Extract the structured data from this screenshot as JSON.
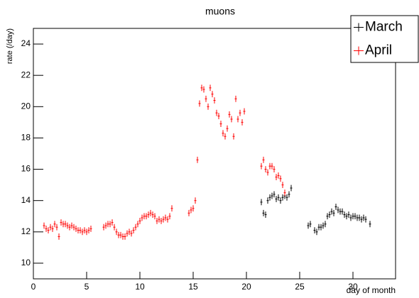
{
  "chart_data": {
    "type": "scatter",
    "title": "muons",
    "x_label": "day of month",
    "y_label": "rate (/day)",
    "xlim": [
      0,
      34
    ],
    "ylim": [
      9,
      25
    ],
    "xticks": [
      0,
      5,
      10,
      15,
      20,
      25,
      30
    ],
    "yticks": [
      10,
      12,
      14,
      16,
      18,
      20,
      22,
      24
    ],
    "legend": "top-right",
    "series": [
      {
        "name": "March",
        "color": "#000000",
        "xerr": 0.1,
        "yerr": 0.2,
        "x": [
          21.4,
          21.6,
          21.8,
          22.0,
          22.2,
          22.4,
          22.6,
          22.8,
          23.0,
          23.2,
          23.4,
          23.6,
          23.8,
          24.0,
          24.2,
          25.8,
          26.0,
          26.4,
          26.6,
          26.8,
          27.0,
          27.2,
          27.4,
          27.6,
          27.8,
          28.0,
          28.2,
          28.4,
          28.6,
          28.8,
          29.0,
          29.2,
          29.4,
          29.6,
          29.8,
          30.0,
          30.2,
          30.4,
          30.6,
          30.8,
          31.0,
          31.2,
          31.6
        ],
        "values": [
          13.9,
          13.2,
          13.1,
          14.0,
          14.2,
          14.3,
          14.4,
          14.1,
          14.2,
          14.0,
          14.2,
          14.3,
          14.2,
          14.4,
          14.8,
          12.4,
          12.5,
          12.1,
          12.0,
          12.3,
          12.3,
          12.4,
          12.5,
          13.0,
          13.1,
          13.3,
          13.2,
          13.6,
          13.4,
          13.3,
          13.3,
          13.1,
          13.0,
          13.1,
          12.9,
          13.0,
          13.0,
          12.9,
          12.9,
          12.8,
          12.9,
          12.8,
          12.5
        ]
      },
      {
        "name": "April",
        "color": "#ff0000",
        "xerr": 0.1,
        "yerr": 0.2,
        "x": [
          1.0,
          1.2,
          1.4,
          1.6,
          1.8,
          2.0,
          2.2,
          2.4,
          2.6,
          2.8,
          3.0,
          3.2,
          3.4,
          3.6,
          3.8,
          4.0,
          4.2,
          4.4,
          4.6,
          4.8,
          5.0,
          5.2,
          5.4,
          6.6,
          6.8,
          7.0,
          7.2,
          7.4,
          7.6,
          7.8,
          8.0,
          8.2,
          8.4,
          8.6,
          8.8,
          9.0,
          9.2,
          9.4,
          9.6,
          9.8,
          10.0,
          10.2,
          10.4,
          10.6,
          10.8,
          11.0,
          11.2,
          11.4,
          11.6,
          11.8,
          12.0,
          12.2,
          12.4,
          12.6,
          12.8,
          13.0,
          14.6,
          14.8,
          15.0,
          15.2,
          15.4,
          15.6,
          15.8,
          16.0,
          16.2,
          16.4,
          16.6,
          16.8,
          17.0,
          17.2,
          17.4,
          17.6,
          17.8,
          18.0,
          18.2,
          18.4,
          18.6,
          18.8,
          19.0,
          19.2,
          19.4,
          19.6,
          19.8,
          21.4,
          21.6,
          21.8,
          22.0,
          22.2,
          22.4,
          22.6,
          22.8,
          23.0,
          23.2,
          23.4,
          23.6
        ],
        "values": [
          12.4,
          12.2,
          12.1,
          12.3,
          12.2,
          12.5,
          12.3,
          11.7,
          12.6,
          12.5,
          12.5,
          12.4,
          12.3,
          12.4,
          12.3,
          12.2,
          12.1,
          12.1,
          12.0,
          12.1,
          12.0,
          12.1,
          12.2,
          12.3,
          12.4,
          12.5,
          12.5,
          12.6,
          12.3,
          12.0,
          11.8,
          11.8,
          11.7,
          11.7,
          11.9,
          12.0,
          11.9,
          12.1,
          12.3,
          12.5,
          12.7,
          12.9,
          13.0,
          13.0,
          13.1,
          13.2,
          13.1,
          13.0,
          12.7,
          12.8,
          12.7,
          12.8,
          12.9,
          12.8,
          13.0,
          13.5,
          13.2,
          13.4,
          13.5,
          14.0,
          16.6,
          20.2,
          21.2,
          21.1,
          20.5,
          20.0,
          21.2,
          20.8,
          20.4,
          19.6,
          19.4,
          18.9,
          18.3,
          18.1,
          18.6,
          19.5,
          19.2,
          18.1,
          20.5,
          19.2,
          19.6,
          19.0,
          19.7,
          16.2,
          16.6,
          16.0,
          15.8,
          16.2,
          16.2,
          16.0,
          15.5,
          15.6,
          15.4,
          15.0,
          14.5
        ]
      }
    ]
  }
}
